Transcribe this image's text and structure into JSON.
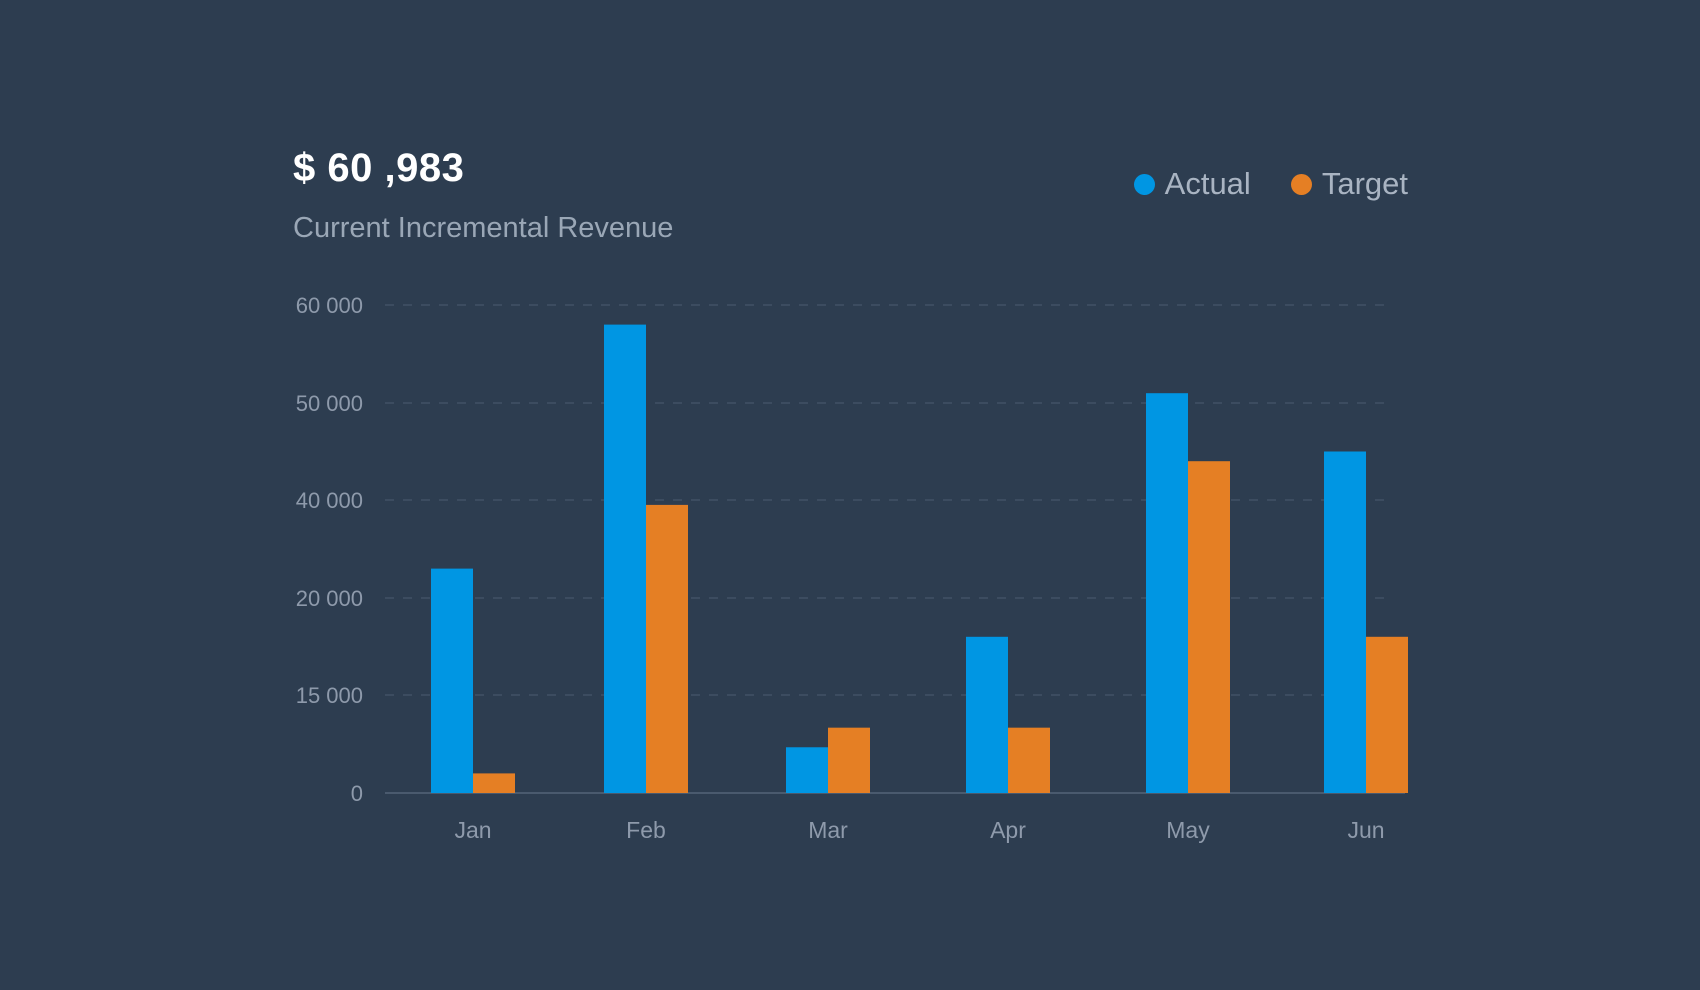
{
  "header": {
    "value": "$ 60 ,983",
    "subtitle": "Current Incremental Revenue"
  },
  "legend": [
    {
      "label": "Actual",
      "color": "#0096e3"
    },
    {
      "label": "Target",
      "color": "#e57f24"
    }
  ],
  "colors": {
    "background": "#2d3d50",
    "grid": "#46566a",
    "axis": "#4a5a6e",
    "actual": "#0096e3",
    "target": "#e57f24"
  },
  "chart_data": {
    "type": "bar",
    "categories": [
      "Jan",
      "Feb",
      "Mar",
      "Apr",
      "May",
      "Jun"
    ],
    "y_ticks": [
      "0",
      "15 000",
      "20 000",
      "40 000",
      "50 000",
      "60 000"
    ],
    "series": [
      {
        "name": "Actual",
        "values": [
          26000,
          58000,
          7000,
          18000,
          51000,
          45000
        ]
      },
      {
        "name": "Target",
        "values": [
          3000,
          39000,
          10000,
          10000,
          44000,
          18000
        ]
      }
    ],
    "xlabel": "",
    "ylabel": "",
    "grid": true,
    "legend_position": "top-right"
  }
}
